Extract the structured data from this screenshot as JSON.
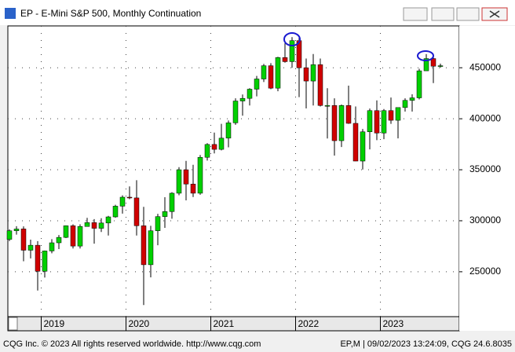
{
  "window_title": "EP - E-Mini S&P 500, Monthly Continuation",
  "footer": {
    "left": "CQG Inc. © 2023 All rights reserved worldwide. http://www.cqg.com",
    "right": "EP,M | 09/02/2023 13:24:09, CQG 24.6.8035"
  },
  "chart_data": {
    "type": "candlestick",
    "categories": [
      null,
      null,
      null,
      null,
      null,
      "2019",
      null,
      null,
      null,
      null,
      null,
      null,
      null,
      null,
      null,
      null,
      null,
      "2020",
      null,
      null,
      null,
      null,
      null,
      null,
      null,
      null,
      null,
      null,
      null,
      "2021",
      null,
      null,
      null,
      null,
      null,
      null,
      null,
      null,
      null,
      null,
      null,
      "2022",
      null,
      null,
      null,
      null,
      null,
      null,
      null,
      null,
      null,
      null,
      null,
      "2023",
      null,
      null,
      null,
      null,
      null,
      null,
      null,
      null
    ],
    "open": [
      281800,
      290200,
      292000,
      271100,
      276000,
      250500,
      270400,
      278400,
      283700,
      295100,
      275200,
      294400,
      298200,
      292600,
      297800,
      303800,
      314300,
      323100,
      322400,
      295100,
      256900,
      290200,
      304100,
      309000,
      327000,
      350000,
      336000,
      327000,
      362200,
      374800,
      370000,
      381000,
      396000,
      417400,
      420000,
      429000,
      439000,
      452000,
      430000,
      460000,
      456000,
      476600,
      450000,
      437000,
      453000,
      413000,
      413000,
      378500,
      413000,
      395500,
      358500,
      387200,
      408000,
      386000,
      408000,
      398500,
      411000,
      418000,
      420500,
      447000,
      459000,
      451500
    ],
    "high": [
      291600,
      294700,
      294500,
      281500,
      280000,
      270800,
      282000,
      286000,
      295400,
      296500,
      296500,
      302900,
      301600,
      302500,
      304800,
      315700,
      324900,
      333700,
      339700,
      313600,
      295100,
      306800,
      323100,
      328000,
      352500,
      358700,
      354900,
      364500,
      376000,
      386400,
      395000,
      398300,
      420000,
      423800,
      430000,
      442000,
      453700,
      454500,
      460800,
      474000,
      480000,
      480000,
      459000,
      463500,
      459000,
      430000,
      420000,
      414000,
      432500,
      412000,
      390000,
      410000,
      418000,
      409500,
      420800,
      410000,
      420000,
      424000,
      449000,
      463400,
      463500,
      454000
    ],
    "low": [
      280000,
      286400,
      260300,
      263100,
      231600,
      244300,
      268100,
      272200,
      283000,
      272800,
      272800,
      294400,
      277500,
      289000,
      285500,
      303000,
      307000,
      321200,
      285500,
      217400,
      244500,
      276000,
      293000,
      302000,
      325000,
      320000,
      323300,
      325500,
      359000,
      366000,
      369000,
      372000,
      394000,
      403000,
      413000,
      422000,
      436000,
      429000,
      427000,
      455000,
      450000,
      421200,
      410100,
      413000,
      412000,
      380700,
      363900,
      372300,
      395000,
      358400,
      350200,
      370000,
      379000,
      380000,
      395000,
      380800,
      407000,
      407000,
      419000,
      447000,
      435000,
      450000
    ],
    "close": [
      290200,
      291900,
      271100,
      276000,
      250500,
      270400,
      278400,
      283700,
      295100,
      275200,
      294400,
      298200,
      292600,
      297800,
      303800,
      314300,
      323100,
      322400,
      295100,
      256900,
      290200,
      304100,
      309000,
      327000,
      350000,
      336000,
      327000,
      362200,
      374800,
      370000,
      381000,
      396000,
      417400,
      420000,
      429000,
      439000,
      452000,
      430000,
      460000,
      456000,
      476600,
      450000,
      437000,
      453000,
      413000,
      413000,
      378500,
      413000,
      395500,
      358500,
      387200,
      408000,
      386000,
      408000,
      398500,
      411000,
      418000,
      420500,
      447000,
      459000,
      451500,
      452000
    ],
    "up_color": "#00d000",
    "down_color": "#d00000",
    "ylim": [
      206000,
      491000
    ],
    "yticks": [
      250000,
      300000,
      350000,
      400000,
      450000
    ],
    "grid": true
  }
}
